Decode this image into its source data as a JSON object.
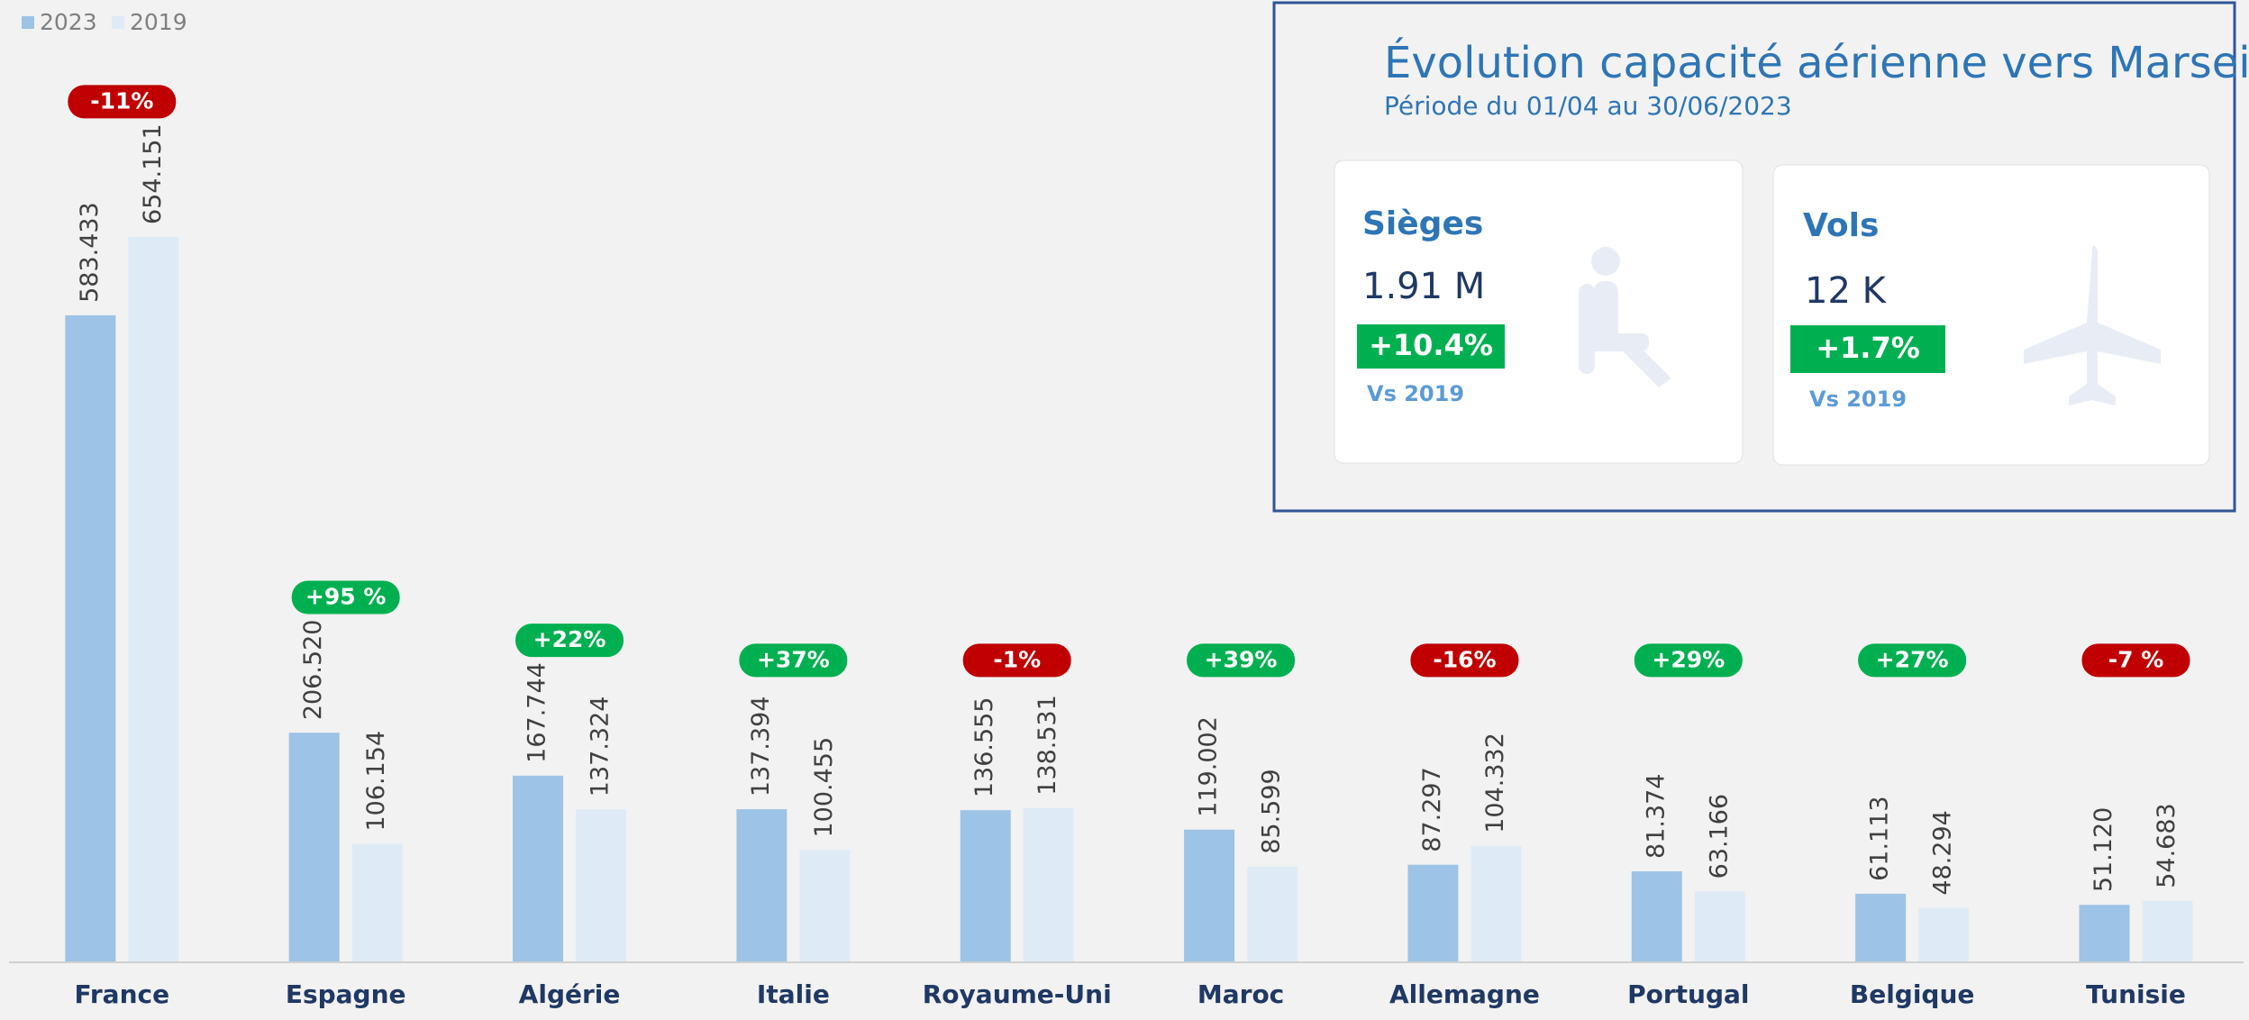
{
  "chart_data": {
    "type": "bar",
    "categories": [
      "France",
      "Espagne",
      "Algérie",
      "Italie",
      "Royaume-Uni",
      "Maroc",
      "Allemagne",
      "Portugal",
      "Belgique",
      "Tunisie"
    ],
    "series": [
      {
        "name": "2023",
        "color": "#9dc3e6",
        "values": [
          583433,
          206520,
          167744,
          137394,
          136555,
          119002,
          87297,
          81374,
          61113,
          51120
        ],
        "value_labels": [
          "583.433",
          "206.520",
          "167.744",
          "137.394",
          "136.555",
          "119.002",
          "87.297",
          "81.374",
          "61.113",
          "51.120"
        ]
      },
      {
        "name": "2019",
        "color": "#deebf7",
        "values": [
          654151,
          106154,
          137324,
          100455,
          138531,
          85599,
          104332,
          63166,
          48294,
          54683
        ],
        "value_labels": [
          "654.151",
          "106.154",
          "137.324",
          "100.455",
          "138.531",
          "85.599",
          "104.332",
          "63.166",
          "48.294",
          "54.683"
        ]
      }
    ],
    "change_labels": [
      "-11%",
      "+95 %",
      "+22%",
      "+37%",
      "-1%",
      "+39%",
      "-16%",
      "+29%",
      "+27%",
      "-7 %"
    ],
    "legend": "top-left"
  },
  "panel": {
    "title": "Évolution capacité aérienne vers Marseille",
    "subtitle": "Période du 01/04 au 30/06/2023",
    "cards": [
      {
        "label": "Sièges",
        "value": "1.91 M",
        "change": "+10.4%",
        "comparison": "Vs 2019"
      },
      {
        "label": "Vols",
        "value": "12 K",
        "change": "+1.7%",
        "comparison": "Vs 2019"
      }
    ]
  }
}
